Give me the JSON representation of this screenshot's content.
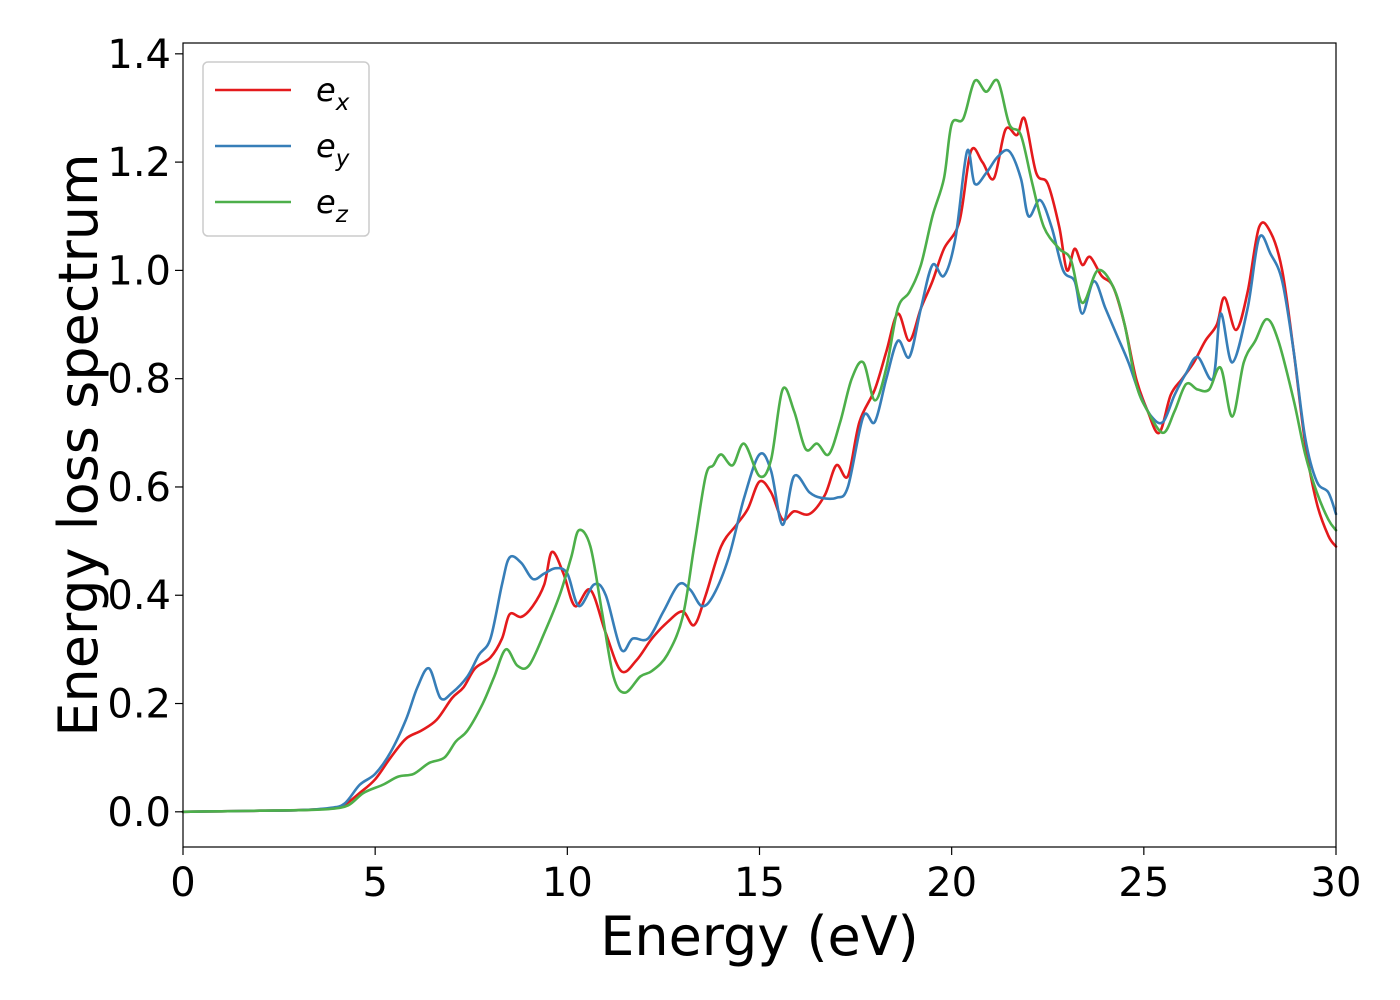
{
  "chart_data": {
    "type": "line",
    "title": "",
    "xlabel": "Energy (eV)",
    "ylabel": "Energy loss spectrum",
    "xlim": [
      0,
      30
    ],
    "ylim": [
      -0.065,
      1.42
    ],
    "xticks": [
      "0",
      "5",
      "10",
      "15",
      "20",
      "25",
      "30"
    ],
    "yticks": [
      "0.0",
      "0.2",
      "0.4",
      "0.6",
      "0.8",
      "1.0",
      "1.2",
      "1.4"
    ],
    "grid": false,
    "legend_position": "top-left",
    "series": [
      {
        "name": "e_x",
        "label_base": "e",
        "label_sub": "x",
        "color": "#e41a1c",
        "points": [
          [
            0,
            0
          ],
          [
            1,
            0.001
          ],
          [
            2,
            0.002
          ],
          [
            3,
            0.003
          ],
          [
            3.8,
            0.006
          ],
          [
            4.2,
            0.013
          ],
          [
            4.6,
            0.035
          ],
          [
            5.0,
            0.06
          ],
          [
            5.4,
            0.1
          ],
          [
            5.8,
            0.135
          ],
          [
            6.2,
            0.15
          ],
          [
            6.6,
            0.17
          ],
          [
            7.0,
            0.21
          ],
          [
            7.3,
            0.23
          ],
          [
            7.6,
            0.265
          ],
          [
            8.0,
            0.285
          ],
          [
            8.3,
            0.32
          ],
          [
            8.5,
            0.365
          ],
          [
            8.8,
            0.36
          ],
          [
            9.1,
            0.38
          ],
          [
            9.4,
            0.42
          ],
          [
            9.6,
            0.48
          ],
          [
            9.9,
            0.44
          ],
          [
            10.2,
            0.38
          ],
          [
            10.6,
            0.41
          ],
          [
            11.0,
            0.33
          ],
          [
            11.4,
            0.26
          ],
          [
            11.8,
            0.28
          ],
          [
            12.2,
            0.32
          ],
          [
            12.6,
            0.35
          ],
          [
            13.0,
            0.37
          ],
          [
            13.3,
            0.345
          ],
          [
            13.6,
            0.4
          ],
          [
            14.0,
            0.49
          ],
          [
            14.4,
            0.53
          ],
          [
            14.7,
            0.56
          ],
          [
            15.0,
            0.61
          ],
          [
            15.3,
            0.59
          ],
          [
            15.6,
            0.54
          ],
          [
            15.9,
            0.555
          ],
          [
            16.3,
            0.55
          ],
          [
            16.7,
            0.585
          ],
          [
            17.0,
            0.64
          ],
          [
            17.3,
            0.62
          ],
          [
            17.6,
            0.72
          ],
          [
            18.0,
            0.78
          ],
          [
            18.3,
            0.85
          ],
          [
            18.6,
            0.92
          ],
          [
            18.9,
            0.87
          ],
          [
            19.2,
            0.93
          ],
          [
            19.5,
            0.98
          ],
          [
            19.8,
            1.04
          ],
          [
            20.2,
            1.09
          ],
          [
            20.5,
            1.22
          ],
          [
            20.8,
            1.2
          ],
          [
            21.1,
            1.17
          ],
          [
            21.4,
            1.26
          ],
          [
            21.7,
            1.25
          ],
          [
            21.9,
            1.28
          ],
          [
            22.2,
            1.18
          ],
          [
            22.5,
            1.16
          ],
          [
            22.8,
            1.08
          ],
          [
            23.0,
            1.0
          ],
          [
            23.2,
            1.04
          ],
          [
            23.4,
            1.01
          ],
          [
            23.6,
            1.025
          ],
          [
            23.9,
            0.99
          ],
          [
            24.2,
            0.97
          ],
          [
            24.5,
            0.9
          ],
          [
            24.8,
            0.8
          ],
          [
            25.1,
            0.74
          ],
          [
            25.4,
            0.7
          ],
          [
            25.7,
            0.77
          ],
          [
            26.0,
            0.8
          ],
          [
            26.3,
            0.83
          ],
          [
            26.6,
            0.87
          ],
          [
            26.9,
            0.9
          ],
          [
            27.1,
            0.95
          ],
          [
            27.4,
            0.89
          ],
          [
            27.7,
            0.96
          ],
          [
            28.0,
            1.08
          ],
          [
            28.3,
            1.07
          ],
          [
            28.6,
            1.0
          ],
          [
            28.9,
            0.85
          ],
          [
            29.2,
            0.68
          ],
          [
            29.5,
            0.57
          ],
          [
            29.8,
            0.51
          ],
          [
            30.0,
            0.49
          ]
        ]
      },
      {
        "name": "e_y",
        "label_base": "e",
        "label_sub": "y",
        "color": "#377eb8",
        "points": [
          [
            0,
            0
          ],
          [
            1,
            0.001
          ],
          [
            2,
            0.002
          ],
          [
            3,
            0.003
          ],
          [
            3.8,
            0.007
          ],
          [
            4.2,
            0.015
          ],
          [
            4.6,
            0.05
          ],
          [
            5.0,
            0.07
          ],
          [
            5.4,
            0.11
          ],
          [
            5.8,
            0.17
          ],
          [
            6.1,
            0.23
          ],
          [
            6.4,
            0.265
          ],
          [
            6.7,
            0.21
          ],
          [
            7.0,
            0.22
          ],
          [
            7.4,
            0.25
          ],
          [
            7.7,
            0.29
          ],
          [
            8.0,
            0.32
          ],
          [
            8.3,
            0.42
          ],
          [
            8.5,
            0.47
          ],
          [
            8.8,
            0.46
          ],
          [
            9.1,
            0.43
          ],
          [
            9.4,
            0.44
          ],
          [
            9.7,
            0.45
          ],
          [
            10.0,
            0.44
          ],
          [
            10.3,
            0.38
          ],
          [
            10.7,
            0.42
          ],
          [
            11.0,
            0.4
          ],
          [
            11.4,
            0.3
          ],
          [
            11.7,
            0.32
          ],
          [
            12.1,
            0.32
          ],
          [
            12.5,
            0.37
          ],
          [
            12.9,
            0.42
          ],
          [
            13.2,
            0.41
          ],
          [
            13.5,
            0.38
          ],
          [
            13.8,
            0.4
          ],
          [
            14.2,
            0.47
          ],
          [
            14.6,
            0.58
          ],
          [
            15.0,
            0.66
          ],
          [
            15.3,
            0.63
          ],
          [
            15.6,
            0.53
          ],
          [
            15.9,
            0.62
          ],
          [
            16.3,
            0.59
          ],
          [
            16.6,
            0.58
          ],
          [
            17.0,
            0.58
          ],
          [
            17.3,
            0.6
          ],
          [
            17.7,
            0.73
          ],
          [
            18.0,
            0.72
          ],
          [
            18.3,
            0.8
          ],
          [
            18.6,
            0.87
          ],
          [
            18.9,
            0.84
          ],
          [
            19.2,
            0.93
          ],
          [
            19.5,
            1.01
          ],
          [
            19.8,
            0.99
          ],
          [
            20.1,
            1.06
          ],
          [
            20.4,
            1.22
          ],
          [
            20.6,
            1.16
          ],
          [
            20.9,
            1.18
          ],
          [
            21.2,
            1.21
          ],
          [
            21.5,
            1.22
          ],
          [
            21.8,
            1.17
          ],
          [
            22.0,
            1.1
          ],
          [
            22.3,
            1.13
          ],
          [
            22.6,
            1.08
          ],
          [
            22.9,
            1.0
          ],
          [
            23.2,
            0.98
          ],
          [
            23.4,
            0.92
          ],
          [
            23.7,
            0.98
          ],
          [
            24.0,
            0.93
          ],
          [
            24.3,
            0.88
          ],
          [
            24.6,
            0.83
          ],
          [
            24.9,
            0.77
          ],
          [
            25.2,
            0.73
          ],
          [
            25.5,
            0.72
          ],
          [
            25.8,
            0.77
          ],
          [
            26.1,
            0.81
          ],
          [
            26.4,
            0.84
          ],
          [
            26.8,
            0.8
          ],
          [
            27.0,
            0.92
          ],
          [
            27.3,
            0.83
          ],
          [
            27.7,
            0.93
          ],
          [
            28.0,
            1.06
          ],
          [
            28.3,
            1.03
          ],
          [
            28.6,
            0.98
          ],
          [
            28.9,
            0.85
          ],
          [
            29.2,
            0.69
          ],
          [
            29.5,
            0.61
          ],
          [
            29.8,
            0.59
          ],
          [
            30.0,
            0.55
          ]
        ]
      },
      {
        "name": "e_z",
        "label_base": "e",
        "label_sub": "z",
        "color": "#4daf4a",
        "points": [
          [
            0,
            0
          ],
          [
            1,
            0.001
          ],
          [
            2,
            0.002
          ],
          [
            3,
            0.003
          ],
          [
            3.8,
            0.005
          ],
          [
            4.3,
            0.012
          ],
          [
            4.7,
            0.035
          ],
          [
            5.2,
            0.05
          ],
          [
            5.6,
            0.065
          ],
          [
            6.0,
            0.07
          ],
          [
            6.4,
            0.09
          ],
          [
            6.8,
            0.1
          ],
          [
            7.1,
            0.13
          ],
          [
            7.4,
            0.15
          ],
          [
            7.8,
            0.2
          ],
          [
            8.1,
            0.25
          ],
          [
            8.4,
            0.3
          ],
          [
            8.7,
            0.27
          ],
          [
            9.0,
            0.27
          ],
          [
            9.4,
            0.33
          ],
          [
            9.8,
            0.4
          ],
          [
            10.1,
            0.47
          ],
          [
            10.3,
            0.52
          ],
          [
            10.6,
            0.49
          ],
          [
            10.9,
            0.37
          ],
          [
            11.2,
            0.25
          ],
          [
            11.5,
            0.22
          ],
          [
            11.9,
            0.25
          ],
          [
            12.2,
            0.26
          ],
          [
            12.6,
            0.29
          ],
          [
            13.0,
            0.36
          ],
          [
            13.3,
            0.49
          ],
          [
            13.6,
            0.62
          ],
          [
            13.8,
            0.64
          ],
          [
            14.0,
            0.66
          ],
          [
            14.3,
            0.64
          ],
          [
            14.6,
            0.68
          ],
          [
            15.0,
            0.62
          ],
          [
            15.3,
            0.65
          ],
          [
            15.6,
            0.78
          ],
          [
            15.9,
            0.74
          ],
          [
            16.2,
            0.67
          ],
          [
            16.5,
            0.68
          ],
          [
            16.8,
            0.66
          ],
          [
            17.1,
            0.72
          ],
          [
            17.4,
            0.8
          ],
          [
            17.7,
            0.83
          ],
          [
            18.0,
            0.76
          ],
          [
            18.3,
            0.82
          ],
          [
            18.6,
            0.93
          ],
          [
            18.9,
            0.96
          ],
          [
            19.2,
            1.01
          ],
          [
            19.5,
            1.1
          ],
          [
            19.8,
            1.17
          ],
          [
            20.0,
            1.27
          ],
          [
            20.3,
            1.28
          ],
          [
            20.6,
            1.35
          ],
          [
            20.9,
            1.33
          ],
          [
            21.2,
            1.35
          ],
          [
            21.5,
            1.27
          ],
          [
            21.8,
            1.25
          ],
          [
            22.1,
            1.16
          ],
          [
            22.4,
            1.08
          ],
          [
            22.8,
            1.04
          ],
          [
            23.1,
            1.02
          ],
          [
            23.4,
            0.94
          ],
          [
            23.8,
            1.0
          ],
          [
            24.2,
            0.97
          ],
          [
            24.5,
            0.9
          ],
          [
            24.8,
            0.79
          ],
          [
            25.1,
            0.74
          ],
          [
            25.5,
            0.7
          ],
          [
            25.8,
            0.74
          ],
          [
            26.1,
            0.79
          ],
          [
            26.4,
            0.78
          ],
          [
            26.7,
            0.78
          ],
          [
            27.0,
            0.82
          ],
          [
            27.3,
            0.73
          ],
          [
            27.6,
            0.83
          ],
          [
            27.9,
            0.87
          ],
          [
            28.2,
            0.91
          ],
          [
            28.5,
            0.87
          ],
          [
            28.9,
            0.76
          ],
          [
            29.2,
            0.66
          ],
          [
            29.5,
            0.59
          ],
          [
            29.8,
            0.54
          ],
          [
            30.0,
            0.52
          ]
        ]
      }
    ]
  }
}
